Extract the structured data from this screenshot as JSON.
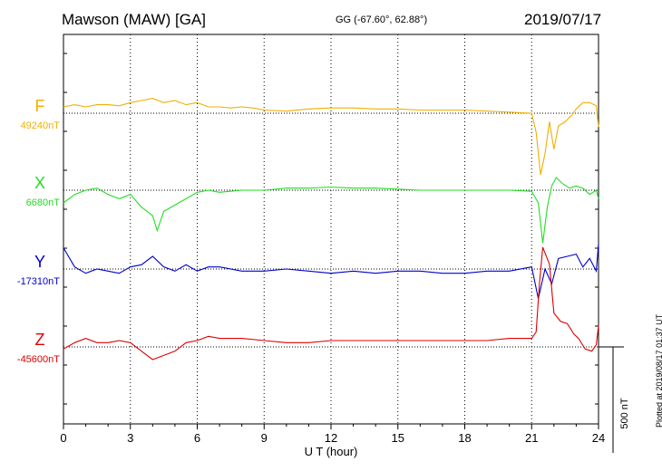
{
  "header": {
    "title": "Mawson (MAW)  [GA]",
    "coords": "GG (-67.60°,  62.88°)",
    "date": "2019/07/17"
  },
  "footer": {
    "plotted": "Plotted at 2019/08/17 01:37 UT"
  },
  "chart_data": {
    "type": "line",
    "title": "Mawson (MAW)  [GA]",
    "xlabel": "U T (hour)",
    "xlim": [
      0,
      24
    ],
    "xticks": [
      0,
      3,
      6,
      9,
      12,
      15,
      18,
      21,
      24
    ],
    "grid": "vertical dotted at every 3 h; dotted baseline per component",
    "scale_bar": {
      "label": "500 nT",
      "value": 500
    },
    "series": [
      {
        "name": "F",
        "baseline_label": "49240nT",
        "baseline": 49240,
        "color": "#f0b000",
        "points": [
          [
            0,
            49270
          ],
          [
            0.5,
            49280
          ],
          [
            1,
            49270
          ],
          [
            1.5,
            49280
          ],
          [
            2,
            49280
          ],
          [
            2.5,
            49275
          ],
          [
            3,
            49290
          ],
          [
            3.5,
            49300
          ],
          [
            4,
            49310
          ],
          [
            4.5,
            49290
          ],
          [
            5,
            49300
          ],
          [
            5.5,
            49280
          ],
          [
            6,
            49290
          ],
          [
            6.5,
            49270
          ],
          [
            7,
            49270
          ],
          [
            7.5,
            49265
          ],
          [
            8,
            49270
          ],
          [
            8.5,
            49265
          ],
          [
            9,
            49255
          ],
          [
            10,
            49250
          ],
          [
            11,
            49260
          ],
          [
            12,
            49265
          ],
          [
            13,
            49265
          ],
          [
            14,
            49260
          ],
          [
            15,
            49260
          ],
          [
            16,
            49255
          ],
          [
            17,
            49255
          ],
          [
            18,
            49255
          ],
          [
            19,
            49250
          ],
          [
            20,
            49245
          ],
          [
            21,
            49240
          ],
          [
            21.2,
            49150
          ],
          [
            21.4,
            48950
          ],
          [
            21.6,
            49050
          ],
          [
            21.8,
            49200
          ],
          [
            22,
            49070
          ],
          [
            22.2,
            49180
          ],
          [
            22.5,
            49200
          ],
          [
            22.8,
            49230
          ],
          [
            23,
            49260
          ],
          [
            23.3,
            49290
          ],
          [
            23.6,
            49290
          ],
          [
            23.9,
            49275
          ],
          [
            24,
            49175
          ]
        ]
      },
      {
        "name": "X",
        "baseline_label": "6680nT",
        "baseline": 6680,
        "color": "#22dd22",
        "points": [
          [
            0,
            6620
          ],
          [
            0.5,
            6660
          ],
          [
            1,
            6680
          ],
          [
            1.5,
            6690
          ],
          [
            2,
            6660
          ],
          [
            2.5,
            6640
          ],
          [
            3,
            6660
          ],
          [
            3.5,
            6600
          ],
          [
            4,
            6560
          ],
          [
            4.2,
            6490
          ],
          [
            4.5,
            6580
          ],
          [
            5,
            6610
          ],
          [
            5.5,
            6640
          ],
          [
            6,
            6670
          ],
          [
            6.5,
            6680
          ],
          [
            7,
            6670
          ],
          [
            8,
            6680
          ],
          [
            9,
            6680
          ],
          [
            10,
            6690
          ],
          [
            11,
            6690
          ],
          [
            12,
            6695
          ],
          [
            13,
            6690
          ],
          [
            14,
            6690
          ],
          [
            15,
            6685
          ],
          [
            16,
            6680
          ],
          [
            17,
            6680
          ],
          [
            18,
            6680
          ],
          [
            19,
            6680
          ],
          [
            20,
            6680
          ],
          [
            21,
            6675
          ],
          [
            21.3,
            6620
          ],
          [
            21.5,
            6430
          ],
          [
            21.7,
            6600
          ],
          [
            21.9,
            6700
          ],
          [
            22.1,
            6740
          ],
          [
            22.4,
            6710
          ],
          [
            22.7,
            6690
          ],
          [
            23,
            6700
          ],
          [
            23.3,
            6690
          ],
          [
            23.6,
            6660
          ],
          [
            23.9,
            6680
          ],
          [
            24,
            6640
          ]
        ]
      },
      {
        "name": "Y",
        "baseline_label": "-17310nT",
        "baseline": -17310,
        "color": "#0000cc",
        "points": [
          [
            0,
            -17210
          ],
          [
            0.5,
            -17300
          ],
          [
            1,
            -17330
          ],
          [
            1.5,
            -17310
          ],
          [
            2,
            -17320
          ],
          [
            2.5,
            -17330
          ],
          [
            3,
            -17300
          ],
          [
            3.5,
            -17290
          ],
          [
            4,
            -17250
          ],
          [
            4.5,
            -17300
          ],
          [
            5,
            -17320
          ],
          [
            5.5,
            -17290
          ],
          [
            6,
            -17320
          ],
          [
            6.5,
            -17300
          ],
          [
            7,
            -17300
          ],
          [
            8,
            -17320
          ],
          [
            9,
            -17320
          ],
          [
            10,
            -17310
          ],
          [
            11,
            -17320
          ],
          [
            12,
            -17330
          ],
          [
            13,
            -17320
          ],
          [
            14,
            -17330
          ],
          [
            15,
            -17320
          ],
          [
            16,
            -17320
          ],
          [
            17,
            -17330
          ],
          [
            18,
            -17330
          ],
          [
            19,
            -17320
          ],
          [
            20,
            -17320
          ],
          [
            21,
            -17300
          ],
          [
            21.3,
            -17450
          ],
          [
            21.6,
            -17310
          ],
          [
            21.9,
            -17380
          ],
          [
            22.2,
            -17260
          ],
          [
            22.6,
            -17250
          ],
          [
            23,
            -17240
          ],
          [
            23.3,
            -17300
          ],
          [
            23.6,
            -17260
          ],
          [
            23.9,
            -17320
          ],
          [
            24,
            -17190
          ]
        ]
      },
      {
        "name": "Z",
        "baseline_label": "-45600nT",
        "baseline": -45600,
        "color": "#dd0000",
        "points": [
          [
            0,
            -45610
          ],
          [
            0.5,
            -45580
          ],
          [
            1,
            -45560
          ],
          [
            1.5,
            -45580
          ],
          [
            2,
            -45580
          ],
          [
            2.5,
            -45570
          ],
          [
            3,
            -45580
          ],
          [
            3.5,
            -45620
          ],
          [
            4,
            -45660
          ],
          [
            4.5,
            -45640
          ],
          [
            5,
            -45620
          ],
          [
            5.5,
            -45580
          ],
          [
            6,
            -45570
          ],
          [
            6.5,
            -45550
          ],
          [
            7,
            -45560
          ],
          [
            8,
            -45560
          ],
          [
            9,
            -45570
          ],
          [
            10,
            -45580
          ],
          [
            11,
            -45580
          ],
          [
            12,
            -45570
          ],
          [
            13,
            -45570
          ],
          [
            14,
            -45570
          ],
          [
            15,
            -45570
          ],
          [
            16,
            -45570
          ],
          [
            17,
            -45570
          ],
          [
            18,
            -45570
          ],
          [
            19,
            -45570
          ],
          [
            20,
            -45560
          ],
          [
            21,
            -45560
          ],
          [
            21.2,
            -45530
          ],
          [
            21.35,
            -45300
          ],
          [
            21.5,
            -45130
          ],
          [
            21.8,
            -45210
          ],
          [
            22,
            -45440
          ],
          [
            22.3,
            -45480
          ],
          [
            22.6,
            -45490
          ],
          [
            22.9,
            -45540
          ],
          [
            23.1,
            -45560
          ],
          [
            23.4,
            -45610
          ],
          [
            23.7,
            -45620
          ],
          [
            23.9,
            -45590
          ],
          [
            24,
            -45500
          ]
        ]
      }
    ]
  }
}
